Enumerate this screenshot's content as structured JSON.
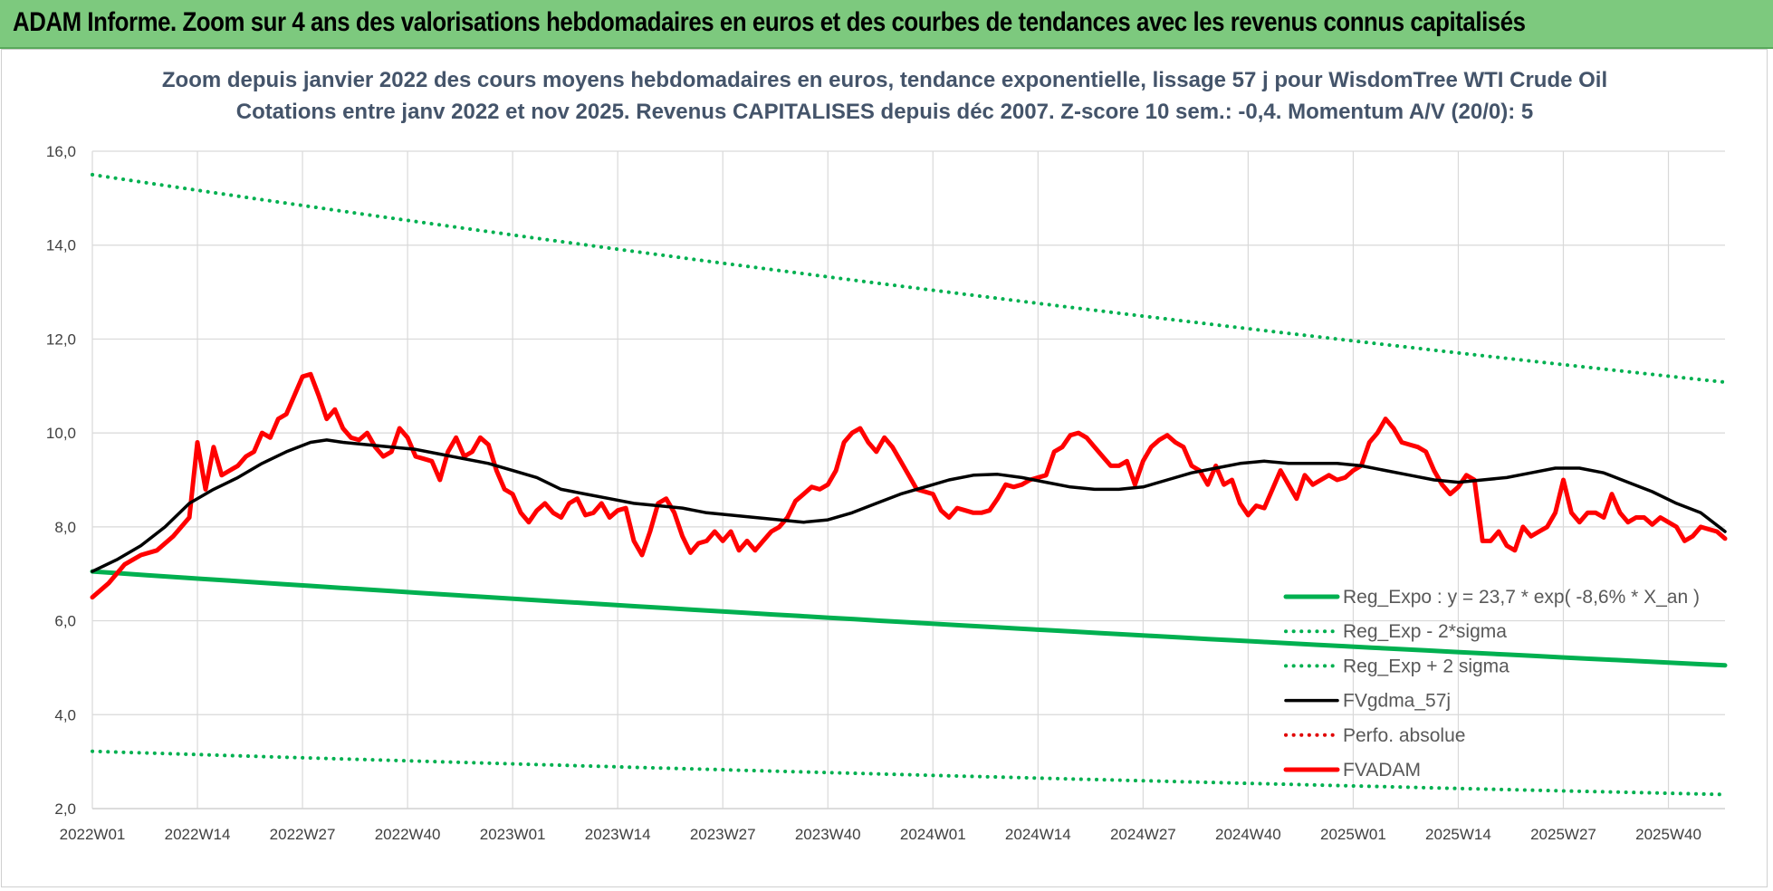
{
  "banner": {
    "title": "ADAM Informe. Zoom sur 4 ans des valorisations hebdomadaires en euros et des courbes de tendances avec les revenus connus capitalisés",
    "color": "#7dc97e"
  },
  "chart_data": {
    "type": "line",
    "title": "Zoom depuis janvier 2022 des cours moyens hebdomadaires en euros, tendance exponentielle, lissage 57 j pour WisdomTree WTI Crude Oil",
    "subtitle": "Cotations entre janv 2022 et nov 2025. Revenus CAPITALISES depuis déc 2007. Z-score 10 sem.: -0,4. Momentum A/V (20/0): 5",
    "xlabel": "",
    "ylabel": "",
    "ylim": [
      2.0,
      16.0
    ],
    "y_ticks": [
      "2,0",
      "4,0",
      "6,0",
      "8,0",
      "10,0",
      "12,0",
      "14,0",
      "16,0"
    ],
    "x_ticks": [
      "2022W01",
      "2022W14",
      "2022W27",
      "2022W40",
      "2023W01",
      "2023W14",
      "2023W27",
      "2023W40",
      "2024W01",
      "2024W14",
      "2024W27",
      "2024W40",
      "2025W01",
      "2025W14",
      "2025W27",
      "2025W40"
    ],
    "x_range_weeks": [
      0,
      202
    ],
    "grid": true,
    "legend_position": "bottom-right",
    "series": [
      {
        "name": "Reg_Expo : y = 23,7 * exp( -8,6% *  X_an )",
        "style": "solid-thick",
        "color": "#00b050",
        "points": [
          [
            0,
            7.05
          ],
          [
            202,
            5.05
          ]
        ]
      },
      {
        "name": "Reg_Exp - 2*sigma",
        "style": "dotted",
        "color": "#00b050",
        "points": [
          [
            0,
            3.22
          ],
          [
            202,
            2.3
          ]
        ]
      },
      {
        "name": "Reg_Exp + 2 sigma",
        "style": "dotted",
        "color": "#00b050",
        "points": [
          [
            0,
            15.5
          ],
          [
            202,
            11.08
          ]
        ]
      },
      {
        "name": "FVgdma_57j",
        "style": "solid",
        "color": "#000000",
        "points": [
          [
            0,
            7.05
          ],
          [
            3,
            7.3
          ],
          [
            6,
            7.6
          ],
          [
            9,
            8.0
          ],
          [
            12,
            8.5
          ],
          [
            15,
            8.8
          ],
          [
            18,
            9.05
          ],
          [
            21,
            9.35
          ],
          [
            24,
            9.6
          ],
          [
            27,
            9.8
          ],
          [
            29,
            9.85
          ],
          [
            31,
            9.8
          ],
          [
            34,
            9.75
          ],
          [
            37,
            9.7
          ],
          [
            40,
            9.65
          ],
          [
            43,
            9.55
          ],
          [
            46,
            9.45
          ],
          [
            49,
            9.35
          ],
          [
            52,
            9.2
          ],
          [
            55,
            9.05
          ],
          [
            58,
            8.8
          ],
          [
            61,
            8.7
          ],
          [
            64,
            8.6
          ],
          [
            67,
            8.5
          ],
          [
            70,
            8.45
          ],
          [
            73,
            8.4
          ],
          [
            76,
            8.3
          ],
          [
            79,
            8.25
          ],
          [
            82,
            8.2
          ],
          [
            85,
            8.15
          ],
          [
            88,
            8.1
          ],
          [
            91,
            8.15
          ],
          [
            94,
            8.3
          ],
          [
            97,
            8.5
          ],
          [
            100,
            8.7
          ],
          [
            103,
            8.85
          ],
          [
            106,
            9.0
          ],
          [
            109,
            9.1
          ],
          [
            112,
            9.12
          ],
          [
            115,
            9.05
          ],
          [
            118,
            8.95
          ],
          [
            121,
            8.85
          ],
          [
            124,
            8.8
          ],
          [
            127,
            8.8
          ],
          [
            130,
            8.85
          ],
          [
            133,
            9.0
          ],
          [
            136,
            9.15
          ],
          [
            139,
            9.25
          ],
          [
            142,
            9.35
          ],
          [
            145,
            9.4
          ],
          [
            148,
            9.35
          ],
          [
            151,
            9.35
          ],
          [
            154,
            9.35
          ],
          [
            157,
            9.3
          ],
          [
            160,
            9.2
          ],
          [
            163,
            9.1
          ],
          [
            166,
            9.0
          ],
          [
            169,
            8.95
          ],
          [
            172,
            9.0
          ],
          [
            175,
            9.05
          ],
          [
            178,
            9.15
          ],
          [
            181,
            9.25
          ],
          [
            184,
            9.25
          ],
          [
            187,
            9.15
          ],
          [
            190,
            8.95
          ],
          [
            193,
            8.75
          ],
          [
            196,
            8.5
          ],
          [
            199,
            8.3
          ],
          [
            202,
            7.9
          ]
        ]
      },
      {
        "name": "Perfo. absolue",
        "style": "dotted",
        "color": "#e00000",
        "points": []
      },
      {
        "name": "FVADAM",
        "style": "solid-thick",
        "color": "#ff0000",
        "points": [
          [
            0,
            6.5
          ],
          [
            2,
            6.8
          ],
          [
            4,
            7.2
          ],
          [
            6,
            7.4
          ],
          [
            8,
            7.5
          ],
          [
            10,
            7.8
          ],
          [
            12,
            8.2
          ],
          [
            13,
            9.8
          ],
          [
            14,
            8.8
          ],
          [
            15,
            9.7
          ],
          [
            16,
            9.1
          ],
          [
            17,
            9.2
          ],
          [
            18,
            9.3
          ],
          [
            19,
            9.5
          ],
          [
            20,
            9.6
          ],
          [
            21,
            10.0
          ],
          [
            22,
            9.9
          ],
          [
            23,
            10.3
          ],
          [
            24,
            10.4
          ],
          [
            25,
            10.8
          ],
          [
            26,
            11.2
          ],
          [
            27,
            11.25
          ],
          [
            28,
            10.8
          ],
          [
            29,
            10.3
          ],
          [
            30,
            10.5
          ],
          [
            31,
            10.1
          ],
          [
            32,
            9.9
          ],
          [
            33,
            9.85
          ],
          [
            34,
            10.0
          ],
          [
            35,
            9.7
          ],
          [
            36,
            9.5
          ],
          [
            37,
            9.6
          ],
          [
            38,
            10.1
          ],
          [
            39,
            9.9
          ],
          [
            40,
            9.5
          ],
          [
            41,
            9.45
          ],
          [
            42,
            9.4
          ],
          [
            43,
            9.0
          ],
          [
            44,
            9.6
          ],
          [
            45,
            9.9
          ],
          [
            46,
            9.5
          ],
          [
            47,
            9.6
          ],
          [
            48,
            9.9
          ],
          [
            49,
            9.75
          ],
          [
            50,
            9.2
          ],
          [
            51,
            8.8
          ],
          [
            52,
            8.7
          ],
          [
            53,
            8.3
          ],
          [
            54,
            8.1
          ],
          [
            55,
            8.35
          ],
          [
            56,
            8.5
          ],
          [
            57,
            8.3
          ],
          [
            58,
            8.2
          ],
          [
            59,
            8.5
          ],
          [
            60,
            8.6
          ],
          [
            61,
            8.25
          ],
          [
            62,
            8.3
          ],
          [
            63,
            8.5
          ],
          [
            64,
            8.2
          ],
          [
            65,
            8.35
          ],
          [
            66,
            8.4
          ],
          [
            67,
            7.7
          ],
          [
            68,
            7.4
          ],
          [
            69,
            7.9
          ],
          [
            70,
            8.5
          ],
          [
            71,
            8.6
          ],
          [
            72,
            8.3
          ],
          [
            73,
            7.8
          ],
          [
            74,
            7.45
          ],
          [
            75,
            7.65
          ],
          [
            76,
            7.7
          ],
          [
            77,
            7.9
          ],
          [
            78,
            7.7
          ],
          [
            79,
            7.9
          ],
          [
            80,
            7.5
          ],
          [
            81,
            7.7
          ],
          [
            82,
            7.5
          ],
          [
            83,
            7.7
          ],
          [
            84,
            7.9
          ],
          [
            85,
            8.0
          ],
          [
            86,
            8.2
          ],
          [
            87,
            8.55
          ],
          [
            88,
            8.7
          ],
          [
            89,
            8.85
          ],
          [
            90,
            8.8
          ],
          [
            91,
            8.9
          ],
          [
            92,
            9.2
          ],
          [
            93,
            9.8
          ],
          [
            94,
            10.0
          ],
          [
            95,
            10.1
          ],
          [
            96,
            9.8
          ],
          [
            97,
            9.6
          ],
          [
            98,
            9.9
          ],
          [
            99,
            9.7
          ],
          [
            100,
            9.4
          ],
          [
            101,
            9.1
          ],
          [
            102,
            8.8
          ],
          [
            103,
            8.75
          ],
          [
            104,
            8.7
          ],
          [
            105,
            8.35
          ],
          [
            106,
            8.2
          ],
          [
            107,
            8.4
          ],
          [
            108,
            8.35
          ],
          [
            109,
            8.3
          ],
          [
            110,
            8.3
          ],
          [
            111,
            8.35
          ],
          [
            112,
            8.6
          ],
          [
            113,
            8.9
          ],
          [
            114,
            8.85
          ],
          [
            115,
            8.9
          ],
          [
            116,
            9.0
          ],
          [
            117,
            9.05
          ],
          [
            118,
            9.1
          ],
          [
            119,
            9.6
          ],
          [
            120,
            9.7
          ],
          [
            121,
            9.95
          ],
          [
            122,
            10.0
          ],
          [
            123,
            9.9
          ],
          [
            124,
            9.7
          ],
          [
            125,
            9.5
          ],
          [
            126,
            9.3
          ],
          [
            127,
            9.3
          ],
          [
            128,
            9.4
          ],
          [
            129,
            8.9
          ],
          [
            130,
            9.4
          ],
          [
            131,
            9.7
          ],
          [
            132,
            9.85
          ],
          [
            133,
            9.95
          ],
          [
            134,
            9.8
          ],
          [
            135,
            9.7
          ],
          [
            136,
            9.3
          ],
          [
            137,
            9.2
          ],
          [
            138,
            8.9
          ],
          [
            139,
            9.3
          ],
          [
            140,
            8.9
          ],
          [
            141,
            9.0
          ],
          [
            142,
            8.5
          ],
          [
            143,
            8.25
          ],
          [
            144,
            8.45
          ],
          [
            145,
            8.4
          ],
          [
            146,
            8.8
          ],
          [
            147,
            9.2
          ],
          [
            148,
            8.9
          ],
          [
            149,
            8.6
          ],
          [
            150,
            9.1
          ],
          [
            151,
            8.9
          ],
          [
            152,
            9.0
          ],
          [
            153,
            9.1
          ],
          [
            154,
            9.0
          ],
          [
            155,
            9.05
          ],
          [
            156,
            9.2
          ],
          [
            157,
            9.3
          ],
          [
            158,
            9.8
          ],
          [
            159,
            10.0
          ],
          [
            160,
            10.3
          ],
          [
            161,
            10.1
          ],
          [
            162,
            9.8
          ],
          [
            163,
            9.75
          ],
          [
            164,
            9.7
          ],
          [
            165,
            9.6
          ],
          [
            166,
            9.2
          ],
          [
            167,
            8.9
          ],
          [
            168,
            8.7
          ],
          [
            169,
            8.85
          ],
          [
            170,
            9.1
          ],
          [
            171,
            9.0
          ],
          [
            172,
            7.7
          ],
          [
            173,
            7.7
          ],
          [
            174,
            7.9
          ],
          [
            175,
            7.6
          ],
          [
            176,
            7.5
          ],
          [
            177,
            8.0
          ],
          [
            178,
            7.8
          ],
          [
            179,
            7.9
          ],
          [
            180,
            8.0
          ],
          [
            181,
            8.3
          ],
          [
            182,
            9.0
          ],
          [
            183,
            8.3
          ],
          [
            184,
            8.1
          ],
          [
            185,
            8.3
          ],
          [
            186,
            8.3
          ],
          [
            187,
            8.2
          ],
          [
            188,
            8.7
          ],
          [
            189,
            8.3
          ],
          [
            190,
            8.1
          ],
          [
            191,
            8.2
          ],
          [
            192,
            8.2
          ],
          [
            193,
            8.05
          ],
          [
            194,
            8.2
          ],
          [
            195,
            8.1
          ],
          [
            196,
            8.0
          ],
          [
            197,
            7.7
          ],
          [
            198,
            7.8
          ],
          [
            199,
            8.0
          ],
          [
            200,
            7.95
          ],
          [
            201,
            7.9
          ],
          [
            202,
            7.75
          ]
        ]
      }
    ]
  }
}
